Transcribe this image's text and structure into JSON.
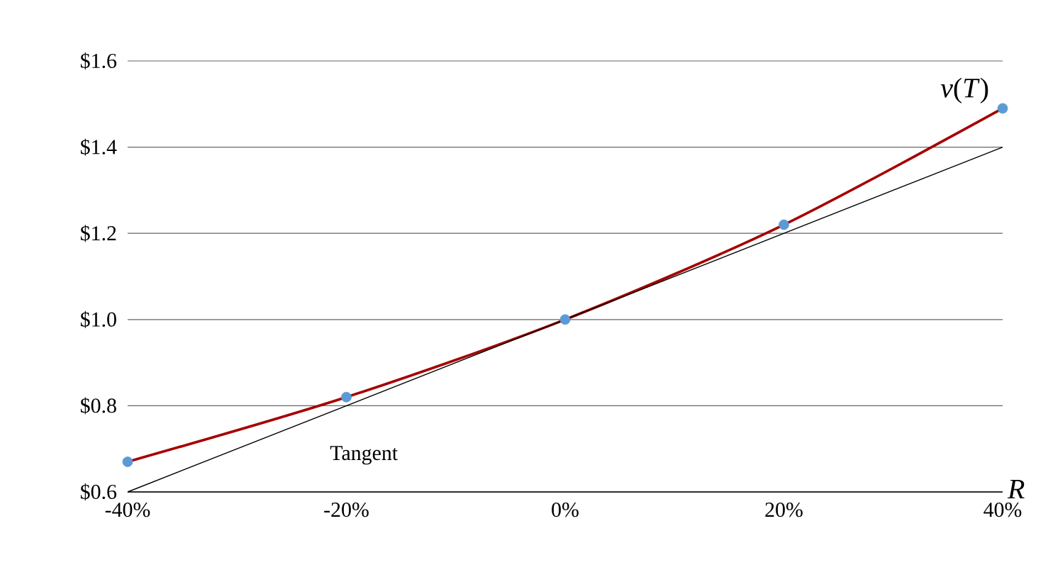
{
  "chart_data": {
    "type": "line",
    "xlabel": "*R*",
    "x": [
      -40,
      -20,
      0,
      20,
      40
    ],
    "series": [
      {
        "name": "*v*(*T*)",
        "color": "#a50000",
        "marker": "none",
        "values": [
          0.67,
          0.82,
          1.0,
          1.22,
          1.49
        ]
      },
      {
        "type": "scatter",
        "color": "#5b9bd5",
        "marker": "circle",
        "values": [
          0.67,
          0.82,
          1.0,
          1.22,
          1.49
        ]
      },
      {
        "type": "line",
        "color": "#000000",
        "marker": "none",
        "x": [
          -40,
          40
        ],
        "values": [
          0.6,
          1.4
        ]
      }
    ],
    "annotations": [
      "Tangent"
    ],
    "xlim": [
      -40,
      40
    ],
    "ylim": [
      0.6,
      1.6
    ],
    "xticks": [
      {
        "value": -40,
        "label": "-40%"
      },
      {
        "value": -20,
        "label": "-20%"
      },
      {
        "value": 0,
        "label": "0%"
      },
      {
        "value": 20,
        "label": "20%"
      },
      {
        "value": 40,
        "label": "40%"
      }
    ],
    "yticks": [
      {
        "value": 0.6,
        "label": "$0.6"
      },
      {
        "value": 0.8,
        "label": "$0.8"
      },
      {
        "value": 1.0,
        "label": "$1.0"
      },
      {
        "value": 1.2,
        "label": "$1.2"
      },
      {
        "value": 1.4,
        "label": "$1.4"
      },
      {
        "value": 1.6,
        "label": "$1.6"
      }
    ],
    "grid": "y",
    "legend": false
  }
}
